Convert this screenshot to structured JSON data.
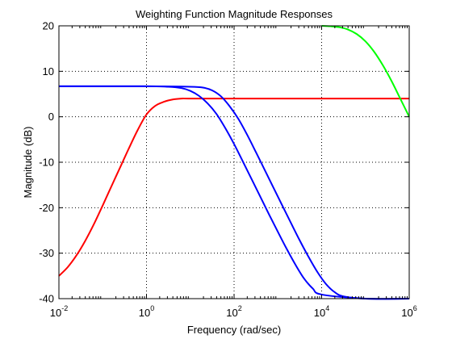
{
  "chart_data": {
    "type": "line",
    "title": "Weighting Function Magnitude Responses",
    "xlabel": "Frequency (rad/sec)",
    "ylabel": "Magnitude (dB)",
    "xscale": "log",
    "xlim": [
      0.01,
      1000000
    ],
    "ylim": [
      -40,
      20
    ],
    "grid": true,
    "grid_style": "dotted",
    "x_ticks": [
      {
        "value": 0.01,
        "base": "10",
        "exp": "-2"
      },
      {
        "value": 1,
        "base": "10",
        "exp": "0"
      },
      {
        "value": 100,
        "base": "10",
        "exp": "2"
      },
      {
        "value": 10000,
        "base": "10",
        "exp": "4"
      },
      {
        "value": 1000000,
        "base": "10",
        "exp": "6"
      }
    ],
    "y_ticks": [
      {
        "value": 20,
        "label": "20"
      },
      {
        "value": 10,
        "label": "10"
      },
      {
        "value": 0,
        "label": "0"
      },
      {
        "value": -10,
        "label": "-10"
      },
      {
        "value": -20,
        "label": "-20"
      },
      {
        "value": -30,
        "label": "-30"
      },
      {
        "value": -40,
        "label": "-40"
      }
    ],
    "series": [
      {
        "color": "#ff0000",
        "x": [
          0.01,
          0.0158,
          0.0251,
          0.0398,
          0.0631,
          0.1,
          0.158,
          0.251,
          0.398,
          0.631,
          1,
          1.58,
          2.51,
          3.98,
          6.31,
          10,
          100,
          10000,
          1000000
        ],
        "y": [
          -35,
          -33.1,
          -30.5,
          -27.3,
          -23.6,
          -19.5,
          -15.3,
          -11.1,
          -6.9,
          -2.9,
          0.5,
          2.4,
          3.3,
          3.8,
          4,
          4,
          4,
          4,
          4
        ]
      },
      {
        "color": "#0000ff",
        "x": [
          0.01,
          1,
          3.16,
          6.31,
          10,
          15.8,
          25.1,
          39.8,
          63.1,
          100,
          158,
          251,
          398,
          631,
          1000,
          1580,
          2510,
          3980,
          6310,
          10000,
          100000,
          1000000
        ],
        "y": [
          6.7,
          6.7,
          6.6,
          6.3,
          5.7,
          4.6,
          2.9,
          0.6,
          -2.5,
          -6,
          -9.8,
          -13.7,
          -17.6,
          -21.5,
          -25.3,
          -29,
          -32.5,
          -35.6,
          -37.8,
          -39.1,
          -40,
          -40
        ]
      },
      {
        "color": "#0000ff",
        "x": [
          0.01,
          1,
          10,
          20,
          31.6,
          50.1,
          79.4,
          126,
          200,
          316,
          501,
          794,
          1260,
          2000,
          3160,
          5010,
          7940,
          12600,
          20000,
          31600,
          100000,
          1000000
        ],
        "y": [
          6.7,
          6.7,
          6.6,
          6.4,
          5.8,
          4.5,
          2.3,
          -0.5,
          -4,
          -7.8,
          -11.7,
          -15.6,
          -19.5,
          -23.4,
          -27.2,
          -30.8,
          -34.1,
          -36.8,
          -38.6,
          -39.5,
          -40,
          -40
        ]
      },
      {
        "color": "#00ff00",
        "x": [
          10000,
          15800,
          25100,
          39800,
          63100,
          100000,
          158000,
          251000,
          398000,
          631000,
          1000000
        ],
        "y": [
          20,
          19.9,
          19.7,
          19.2,
          18.2,
          16.6,
          14.3,
          11.3,
          7.8,
          3.9,
          0
        ]
      }
    ]
  }
}
